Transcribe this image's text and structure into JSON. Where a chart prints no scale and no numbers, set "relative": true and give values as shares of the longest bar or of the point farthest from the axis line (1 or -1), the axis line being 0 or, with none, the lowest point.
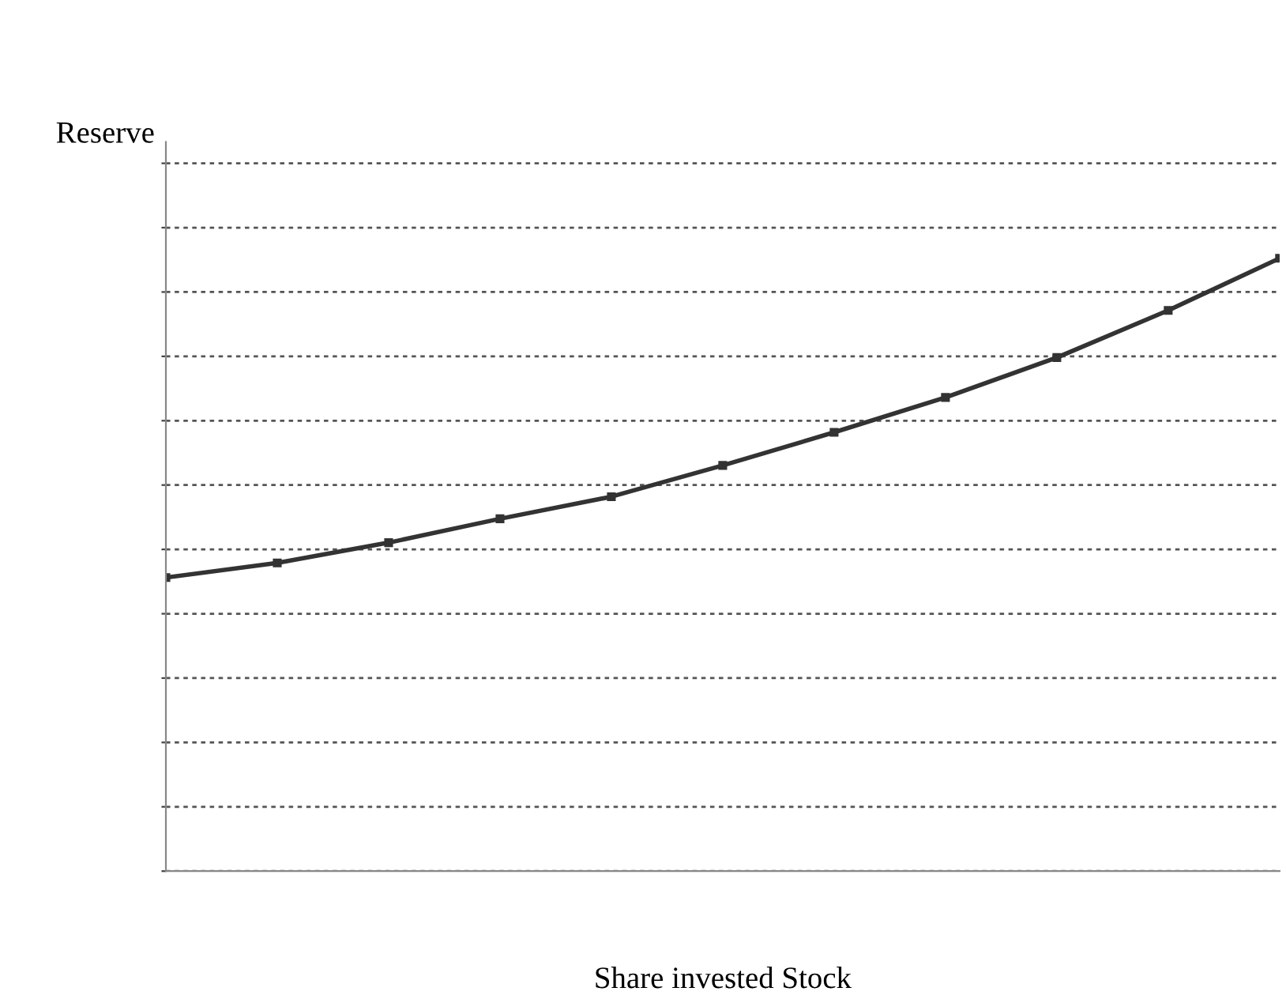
{
  "chart_data": {
    "type": "line",
    "xlabel": "Share invested Stock",
    "ylabel": "Reserve",
    "relative": true,
    "categories": [
      null,
      null,
      null,
      null,
      null,
      null,
      null,
      null,
      null,
      null,
      null
    ],
    "series": [
      {
        "color": "#333333",
        "values": [
          0.479,
          0.503,
          0.536,
          0.575,
          0.611,
          0.662,
          0.716,
          0.773,
          0.838,
          0.915,
          1.0
        ]
      }
    ],
    "grid": "y",
    "line_style": "solid",
    "marker": "square",
    "legend": false
  }
}
